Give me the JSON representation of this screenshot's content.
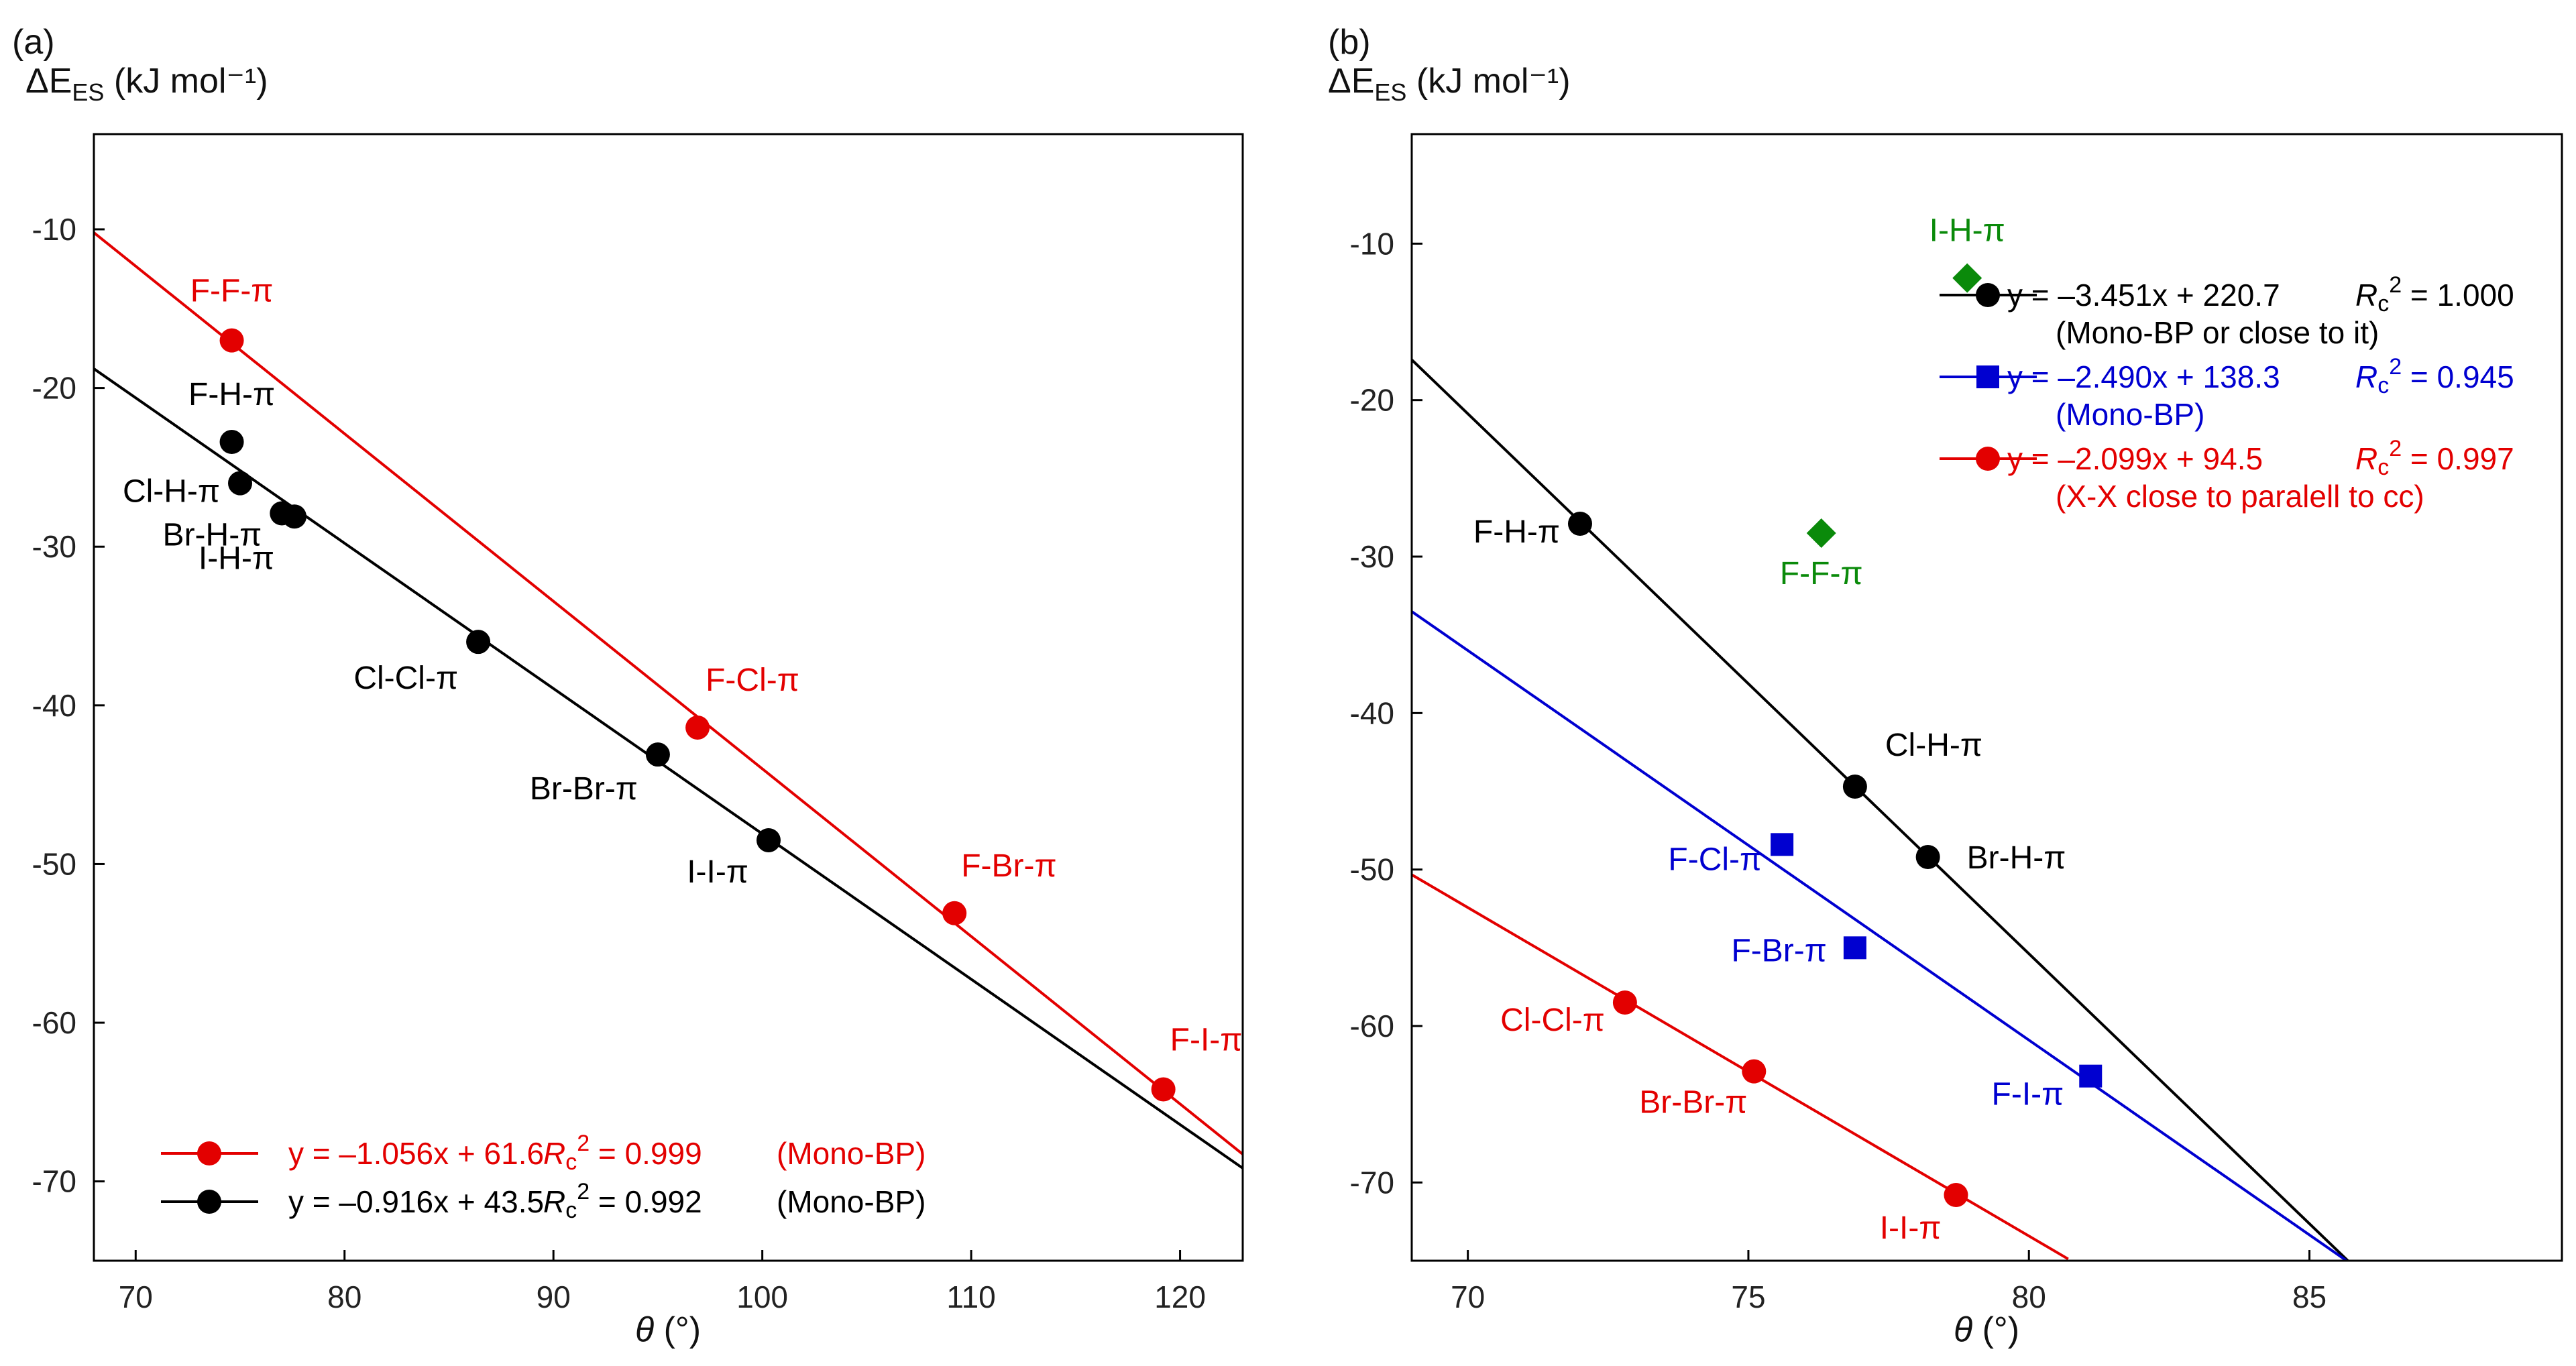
{
  "chart_data": [
    {
      "type": "scatter",
      "panel": "(a)",
      "ylabel_prefix": "ΔE",
      "ylabel_sub": "ES",
      "ylabel_units": "(kJ mol⁻¹)",
      "xlabel_theta": "θ",
      "xlabel_units": "(°)",
      "xlim": [
        68,
        123
      ],
      "ylim": [
        -75,
        -4
      ],
      "xticks": [
        70,
        80,
        90,
        100,
        110,
        120
      ],
      "yticks": [
        -10,
        -20,
        -30,
        -40,
        -50,
        -60,
        -70
      ],
      "series": [
        {
          "name": "red",
          "color": "#e30000",
          "marker": "circle",
          "fit": {
            "slope": -1.056,
            "intercept": 61.6,
            "x_range": [
              68,
              123
            ]
          },
          "points": [
            {
              "x": 74.6,
              "y": -17.0,
              "label": "F-F-π"
            },
            {
              "x": 96.9,
              "y": -41.4,
              "label": "F-Cl-π"
            },
            {
              "x": 109.2,
              "y": -53.1,
              "label": "F-Br-π"
            },
            {
              "x": 119.2,
              "y": -64.2,
              "label": "F-I-π"
            }
          ]
        },
        {
          "name": "black",
          "color": "#000000",
          "marker": "circle",
          "fit": {
            "slope": -0.916,
            "intercept": 43.5,
            "x_range": [
              68,
              123
            ]
          },
          "points": [
            {
              "x": 74.6,
              "y": -23.4,
              "label": "F-H-π"
            },
            {
              "x": 75.0,
              "y": -26.0,
              "label": "Cl-H-π"
            },
            {
              "x": 77.0,
              "y": -27.9,
              "label": "Br-H-π"
            },
            {
              "x": 77.6,
              "y": -28.1,
              "label": "I-H-π"
            },
            {
              "x": 86.4,
              "y": -36.0,
              "label": "Cl-Cl-π"
            },
            {
              "x": 95.0,
              "y": -43.1,
              "label": "Br-Br-π"
            },
            {
              "x": 100.3,
              "y": -48.5,
              "label": "I-I-π"
            }
          ]
        }
      ],
      "legend": [
        {
          "color": "#e30000",
          "marker": "circle",
          "eq": "y = –1.056x + 61.6",
          "r_sq": "2 = 0.999",
          "note": "(Mono-BP)"
        },
        {
          "color": "#000000",
          "marker": "circle",
          "eq": "y = –0.916x + 43.5",
          "r_sq": "2 = 0.992",
          "note": "(Mono-BP)"
        }
      ],
      "legend_position": "bottom"
    },
    {
      "type": "scatter",
      "panel": "(b)",
      "ylabel_prefix": "ΔE",
      "ylabel_sub": "ES",
      "ylabel_units": "(kJ mol⁻¹)",
      "xlabel_theta": "θ",
      "xlabel_units": "(°)",
      "xlim": [
        69,
        89.5
      ],
      "ylim": [
        -75,
        -3
      ],
      "xticks": [
        70,
        75,
        80,
        85
      ],
      "yticks": [
        -10,
        -20,
        -30,
        -40,
        -50,
        -60,
        -70
      ],
      "series": [
        {
          "name": "black",
          "color": "#000000",
          "marker": "circle",
          "fit": {
            "slope": -3.451,
            "intercept": 220.7,
            "x_range": [
              69,
              85.7
            ]
          },
          "points": [
            {
              "x": 72.0,
              "y": -27.9,
              "label": "F-H-π"
            },
            {
              "x": 76.9,
              "y": -44.7,
              "label": "Cl-H-π"
            },
            {
              "x": 78.2,
              "y": -49.2,
              "label": "Br-H-π"
            }
          ]
        },
        {
          "name": "blue",
          "color": "#0000d0",
          "marker": "square",
          "fit": {
            "slope": -2.49,
            "intercept": 138.3,
            "x_range": [
              69,
              85.7
            ]
          },
          "points": [
            {
              "x": 75.6,
              "y": -48.4,
              "label": "F-Cl-π"
            },
            {
              "x": 76.9,
              "y": -55.0,
              "label": "F-Br-π"
            },
            {
              "x": 81.1,
              "y": -63.2,
              "label": "F-I-π"
            }
          ]
        },
        {
          "name": "red",
          "color": "#e30000",
          "marker": "circle",
          "fit": {
            "slope": -2.099,
            "intercept": 94.5,
            "x_range": [
              69,
              80.7
            ]
          },
          "points": [
            {
              "x": 72.8,
              "y": -58.5,
              "label": "Cl-Cl-π"
            },
            {
              "x": 75.1,
              "y": -62.9,
              "label": "Br-Br-π"
            },
            {
              "x": 78.7,
              "y": -70.8,
              "label": "I-I-π"
            }
          ]
        },
        {
          "name": "green",
          "color": "#0a8a0a",
          "marker": "diamond",
          "fit": null,
          "points": [
            {
              "x": 78.9,
              "y": -12.2,
              "label": "I-H-π"
            },
            {
              "x": 76.3,
              "y": -28.5,
              "label": "F-F-π"
            }
          ]
        }
      ],
      "legend": [
        {
          "color": "#000000",
          "marker": "circle",
          "eq": "y = –3.451x + 220.7",
          "r_sq": "2 = 1.000",
          "note": "(Mono-BP or close to it)"
        },
        {
          "color": "#0000d0",
          "marker": "square",
          "eq": "y = –2.490x + 138.3",
          "r_sq": "2 = 0.945",
          "note": "(Mono-BP)"
        },
        {
          "color": "#e30000",
          "marker": "circle",
          "eq": "y = –2.099x + 94.5",
          "r_sq": "2 = 0.997",
          "note": "(X-X close to paralell to cc)"
        }
      ],
      "legend_position": "top-right"
    }
  ]
}
